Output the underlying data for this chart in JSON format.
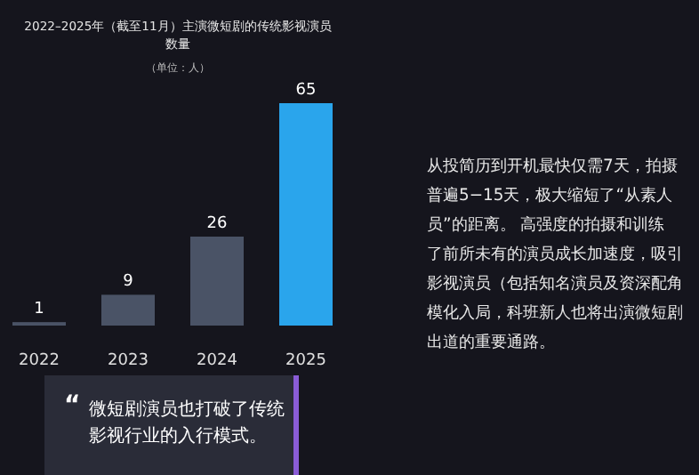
{
  "chart_data": {
    "type": "bar",
    "title": "2022–2025年（截至11月）主演微短剧的传统影视演员数量",
    "subtitle": "（单位：人）",
    "categories": [
      "2022",
      "2023",
      "2024",
      "2025"
    ],
    "values": [
      1,
      9,
      26,
      65
    ],
    "colors": [
      "#4a5366",
      "#4a5366",
      "#4a5366",
      "#2aa5ec"
    ],
    "data_labels": true,
    "annotations": [
      "从投简历到开机最快仅需7天，拍摄",
      "普遍5−15天，极大缩短了“从素人",
      "员”的距离。 高强度的拍摄和训练",
      "了前所未有的演员成长加速度，吸引",
      "影视演员（包括知名演员及资深配角",
      "模化入局，科班新人也将出演微短剧",
      "出道的重要通路。",
      "“",
      "微短剧演员也打破了传统",
      "影视行业的入行模式。"
    ]
  }
}
